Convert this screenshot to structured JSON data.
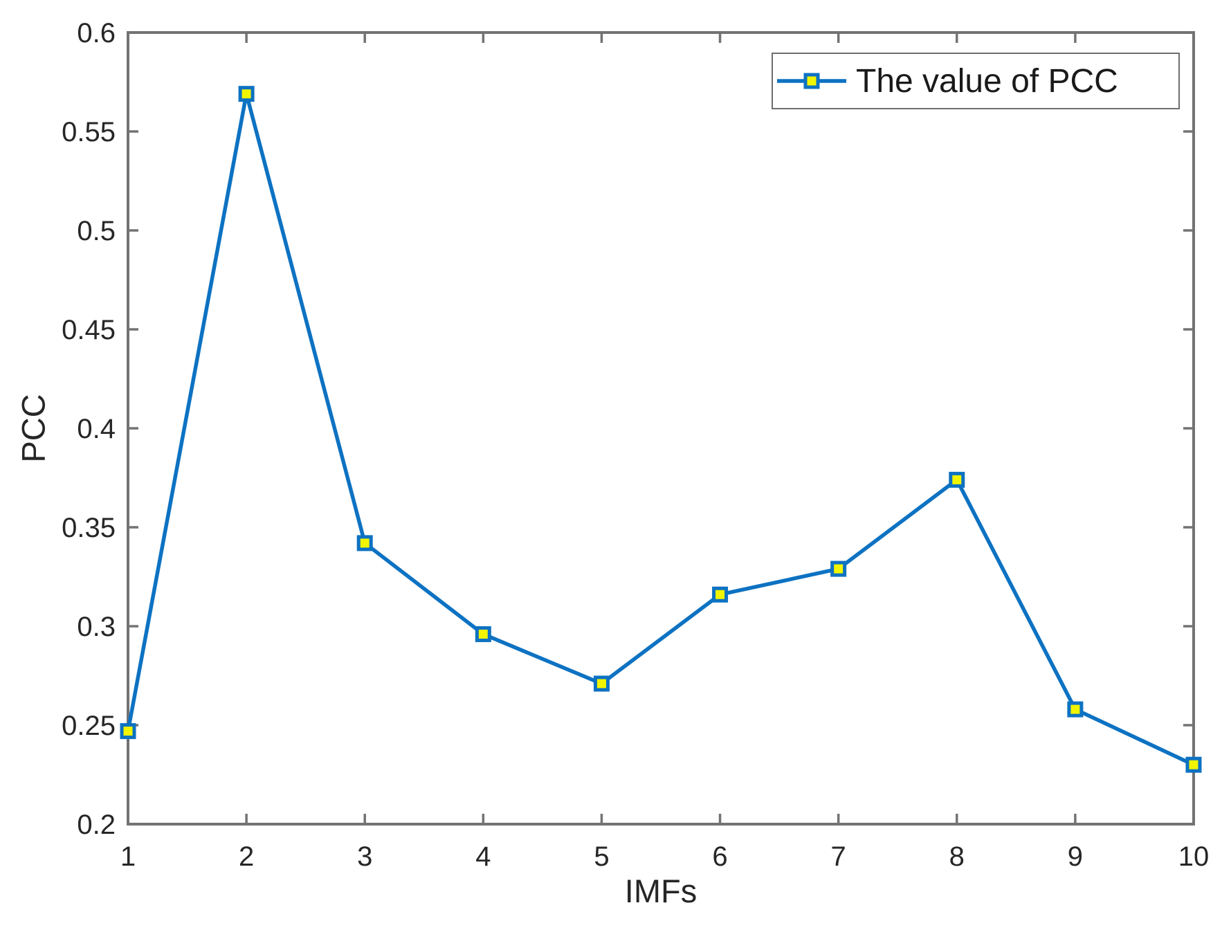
{
  "chart_data": {
    "type": "line",
    "title": "",
    "xlabel": "IMFs",
    "ylabel": "PCC",
    "legend": [
      "The value of PCC"
    ],
    "legend_position": "top-right",
    "x": [
      1,
      2,
      3,
      4,
      5,
      6,
      7,
      8,
      9,
      10
    ],
    "values": [
      0.247,
      0.569,
      0.342,
      0.296,
      0.271,
      0.316,
      0.329,
      0.374,
      0.258,
      0.23
    ],
    "xlim": [
      1,
      10
    ],
    "ylim": [
      0.2,
      0.6
    ],
    "xticks": [
      1,
      2,
      3,
      4,
      5,
      6,
      7,
      8,
      9,
      10
    ],
    "xtick_labels": [
      "1",
      "2",
      "3",
      "4",
      "5",
      "6",
      "7",
      "8",
      "9",
      "10"
    ],
    "yticks": [
      0.2,
      0.25,
      0.3,
      0.35,
      0.4,
      0.45,
      0.5,
      0.55,
      0.6
    ],
    "ytick_labels": [
      "0.2",
      "0.25",
      "0.3",
      "0.35",
      "0.4",
      "0.45",
      "0.5",
      "0.55",
      "0.6"
    ],
    "grid": false,
    "marker": "square",
    "colors": {
      "line": "#0d72c2",
      "marker_fill": "#f1f500",
      "marker_edge": "#0d72c2",
      "axis": "#737373",
      "text": "#262626",
      "legend_border": "#6e6e6e",
      "background": "#ffffff"
    }
  }
}
